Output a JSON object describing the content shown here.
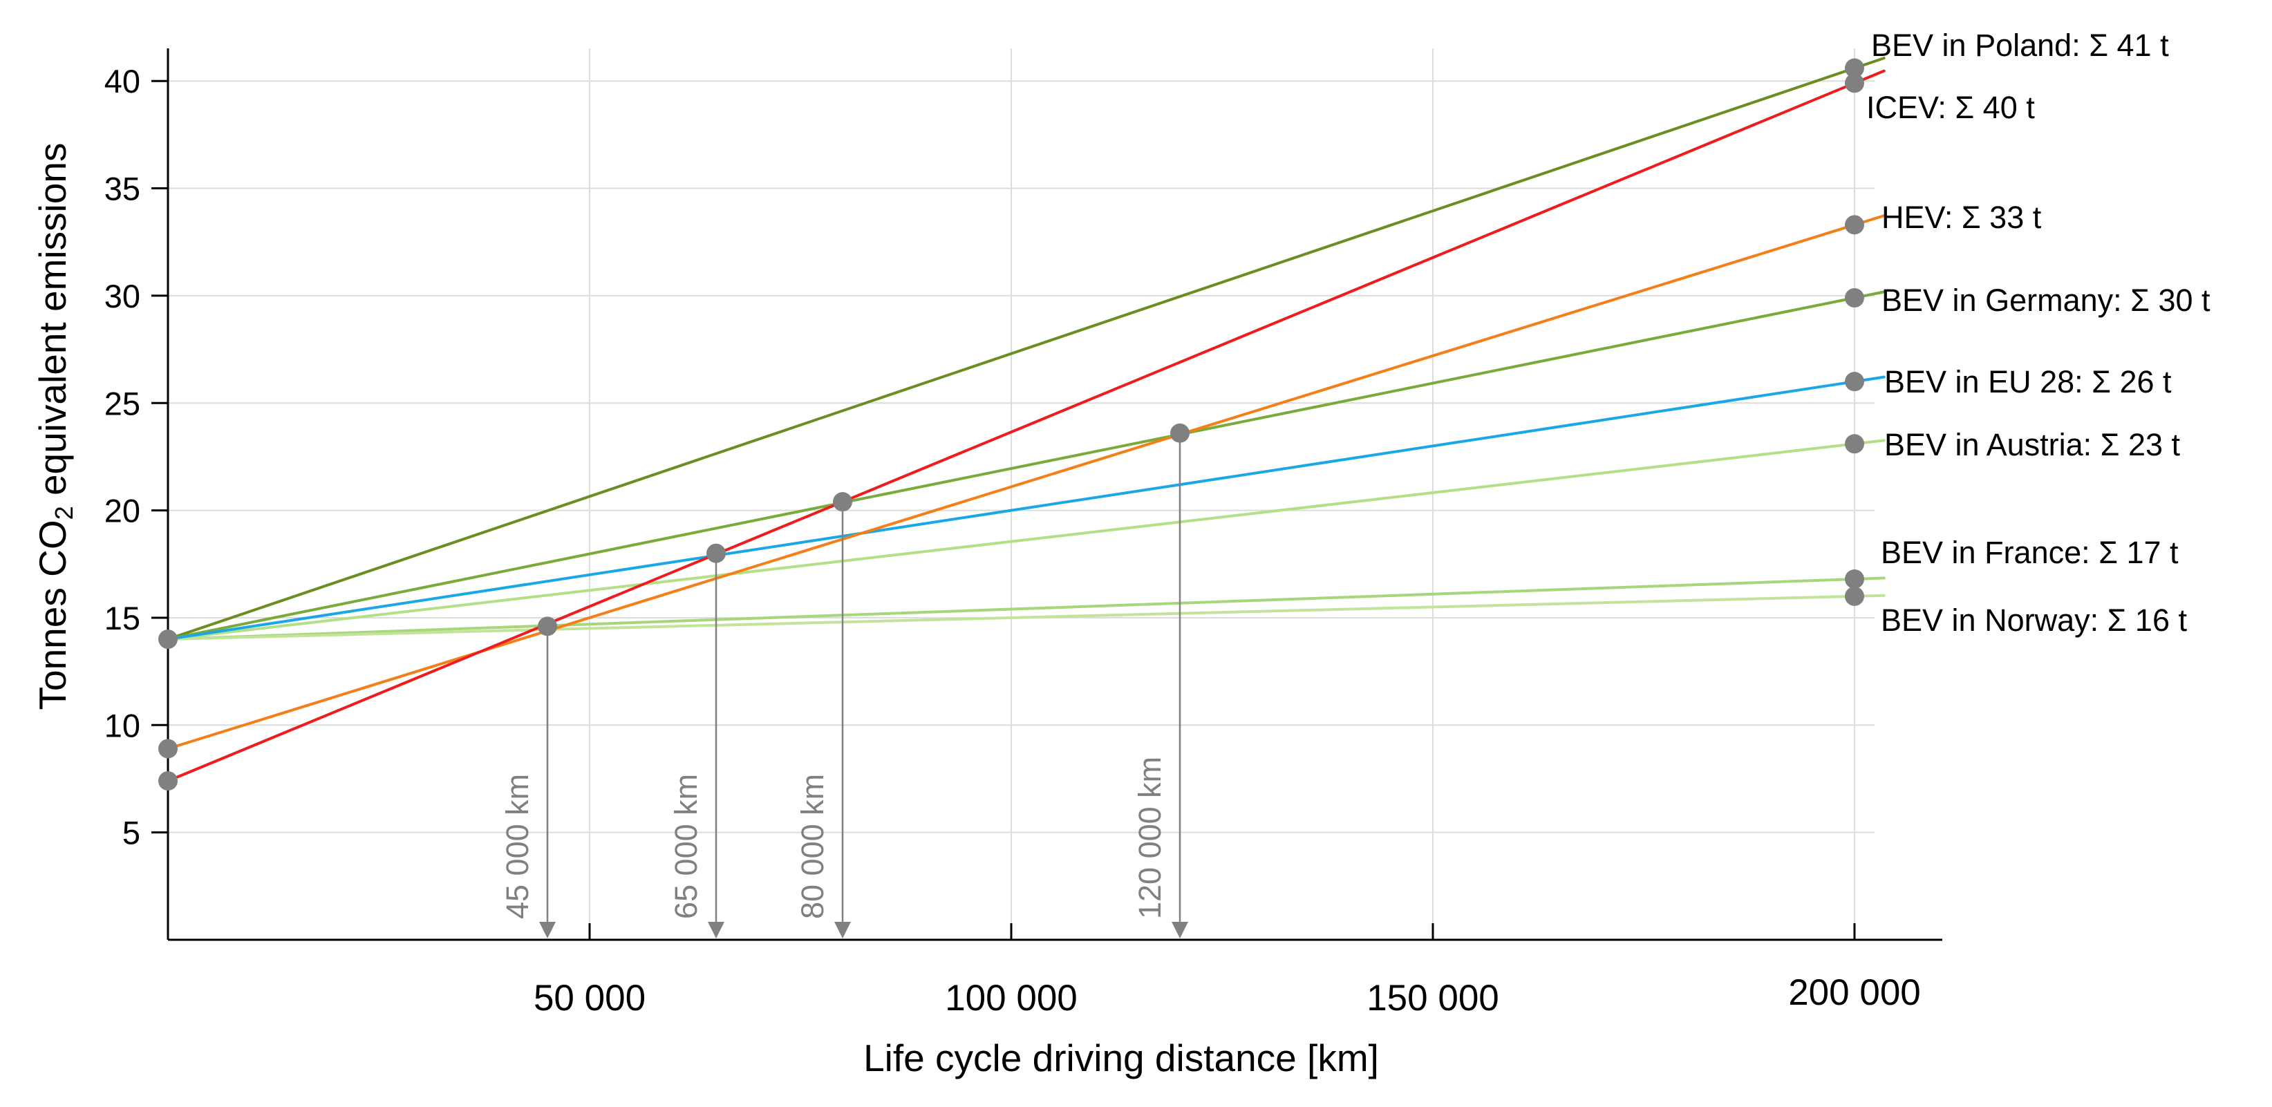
{
  "chart_data": {
    "type": "line",
    "xlabel": "Life cycle driving distance [km]",
    "ylabel": {
      "prefix": "Tonnes CO",
      "subscript": "2",
      "suffix": " equivalent emissions"
    },
    "xlim": [
      0,
      210000
    ],
    "ylim": [
      0,
      41.5
    ],
    "x_ticks": [
      {
        "value": 50000,
        "label": "50 000"
      },
      {
        "value": 100000,
        "label": "100 000"
      },
      {
        "value": 150000,
        "label": "150 000"
      },
      {
        "value": 200000,
        "label": "200 000"
      }
    ],
    "y_ticks": [
      {
        "value": 5,
        "label": "5"
      },
      {
        "value": 10,
        "label": "10"
      },
      {
        "value": 15,
        "label": "15"
      },
      {
        "value": 20,
        "label": "20"
      },
      {
        "value": 25,
        "label": "25"
      },
      {
        "value": 30,
        "label": "30"
      },
      {
        "value": 35,
        "label": "35"
      },
      {
        "value": 40,
        "label": "40"
      }
    ],
    "grid": true,
    "series": [
      {
        "name": "BEV in Poland",
        "label": "BEV in Poland: Σ 41 t",
        "color": "#6b8e23",
        "x": [
          0,
          200000
        ],
        "y": [
          14,
          40.6
        ]
      },
      {
        "name": "ICEV",
        "label": "ICEV: Σ 40 t",
        "color": "#ee1c1c",
        "x": [
          0,
          200000
        ],
        "y": [
          7.4,
          39.9
        ]
      },
      {
        "name": "HEV",
        "label": "HEV: Σ 33 t",
        "color": "#f57f17",
        "x": [
          0,
          200000
        ],
        "y": [
          8.9,
          33.3
        ]
      },
      {
        "name": "BEV in Germany",
        "label": "BEV in Germany: Σ 30 t",
        "color": "#7aab3a",
        "x": [
          0,
          200000
        ],
        "y": [
          14,
          29.9
        ]
      },
      {
        "name": "BEV in EU 28",
        "label": "BEV in EU 28: Σ 26 t",
        "color": "#1aa7e8",
        "x": [
          0,
          200000
        ],
        "y": [
          14,
          26
        ]
      },
      {
        "name": "BEV in Austria",
        "label": "BEV in Austria: Σ 23 t",
        "color": "#b5df86",
        "x": [
          0,
          200000
        ],
        "y": [
          14,
          23.1
        ]
      },
      {
        "name": "BEV in France",
        "label": "BEV in France: Σ 17 t",
        "color": "#a8d67a",
        "x": [
          0,
          200000
        ],
        "y": [
          14,
          16.8
        ]
      },
      {
        "name": "BEV in Norway",
        "label": "BEV in Norway: Σ 16 t",
        "color": "#c2e39a",
        "x": [
          0,
          200000
        ],
        "y": [
          14,
          16
        ]
      }
    ],
    "break_even": [
      {
        "x": 45000,
        "y": 14.6,
        "label": "45 000 km"
      },
      {
        "x": 65000,
        "y": 18,
        "label": "65 000 km"
      },
      {
        "x": 80000,
        "y": 20.4,
        "label": "80 000 km"
      },
      {
        "x": 120000,
        "y": 23.6,
        "label": "120 000 km"
      }
    ],
    "colors": {
      "marker": "#808080",
      "arrow": "#808080",
      "grid": "#dcdcdc",
      "axis": "#000000"
    }
  }
}
